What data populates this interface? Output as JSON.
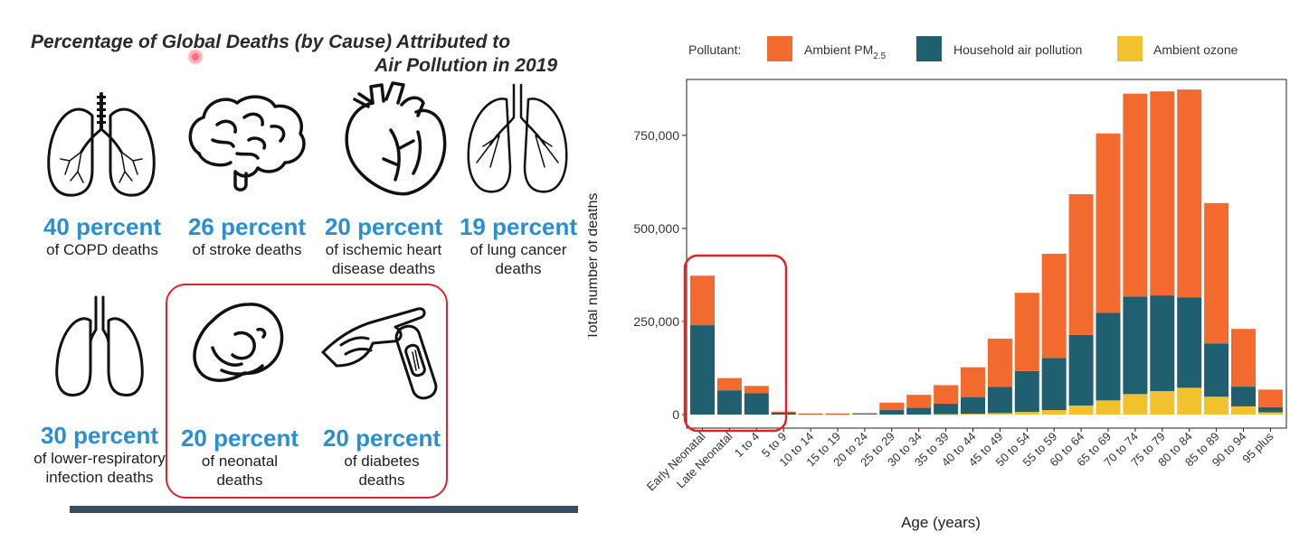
{
  "infographic": {
    "title_line1": "Percentage of Global Deaths (by Cause) Attributed to",
    "title_line2": "Air Pollution in 2019",
    "stats": [
      {
        "pct": "40 percent",
        "desc": [
          "of COPD deaths"
        ],
        "icon": "lungs-icon"
      },
      {
        "pct": "26 percent",
        "desc": [
          "of stroke deaths"
        ],
        "icon": "brain-icon"
      },
      {
        "pct": "20 percent",
        "desc": [
          "of ischemic heart",
          "disease deaths"
        ],
        "icon": "heart-icon"
      },
      {
        "pct": "19 percent",
        "desc": [
          "of lung cancer",
          "deaths"
        ],
        "icon": "bronchi-icon"
      },
      {
        "pct": "30 percent",
        "desc": [
          "of lower-respiratory",
          "infection deaths"
        ],
        "icon": "respiratory-icon"
      },
      {
        "pct": "20 percent",
        "desc": [
          "of neonatal",
          "deaths"
        ],
        "icon": "fetus-icon"
      },
      {
        "pct": "20 percent",
        "desc": [
          "of diabetes",
          "deaths"
        ],
        "icon": "glucose-meter-icon"
      }
    ]
  },
  "chart_data": {
    "type": "bar",
    "stacked": true,
    "legend_title": "Pollutant:",
    "legend_position": "top",
    "xlabel": "Age (years)",
    "ylabel": "Total number of deaths",
    "ylim": [
      0,
      900000
    ],
    "yticks": [
      0,
      250000,
      500000,
      750000
    ],
    "ytick_labels": [
      "0",
      "250,000",
      "500,000",
      "750,000"
    ],
    "grid": false,
    "categories": [
      "Early Neonatal",
      "Late Neonatal",
      "1 to 4",
      "5 to 9",
      "10 to 14",
      "15 to 19",
      "20 to 24",
      "25 to 29",
      "30 to 34",
      "35 to 39",
      "40 to 44",
      "45 to 49",
      "50 to 54",
      "55 to 59",
      "60 to 64",
      "65 to 69",
      "70 to 74",
      "75 to 79",
      "80 to 84",
      "85 to 89",
      "90 to 94",
      "95 plus"
    ],
    "series": [
      {
        "name": "Ambient ozone",
        "color": "#f2c12e",
        "values": [
          0,
          0,
          0,
          0,
          0,
          0,
          0,
          0,
          0,
          1000,
          2000,
          4000,
          7000,
          12000,
          24000,
          38000,
          55000,
          63000,
          72000,
          48000,
          22000,
          6000
        ]
      },
      {
        "name": "Household air pollution",
        "color": "#1f5f6f",
        "values": [
          240000,
          65000,
          57000,
          5000,
          2000,
          2000,
          3000,
          12000,
          18000,
          28000,
          45000,
          70000,
          110000,
          140000,
          190000,
          235000,
          262000,
          257000,
          243000,
          143000,
          53000,
          14000
        ]
      },
      {
        "name": "Ambient PM",
        "name_sub": "2.5",
        "color": "#f26a2e",
        "values": [
          133000,
          33000,
          20000,
          3000,
          1000,
          1000,
          1000,
          20000,
          35000,
          50000,
          80000,
          130000,
          210000,
          280000,
          378000,
          482000,
          545000,
          548000,
          558000,
          377000,
          155000,
          47000
        ]
      }
    ],
    "legend_order": [
      "Ambient PM",
      "Household air pollution",
      "Ambient ozone"
    ]
  },
  "annotation": {
    "highlight_color": "#e0232b"
  }
}
